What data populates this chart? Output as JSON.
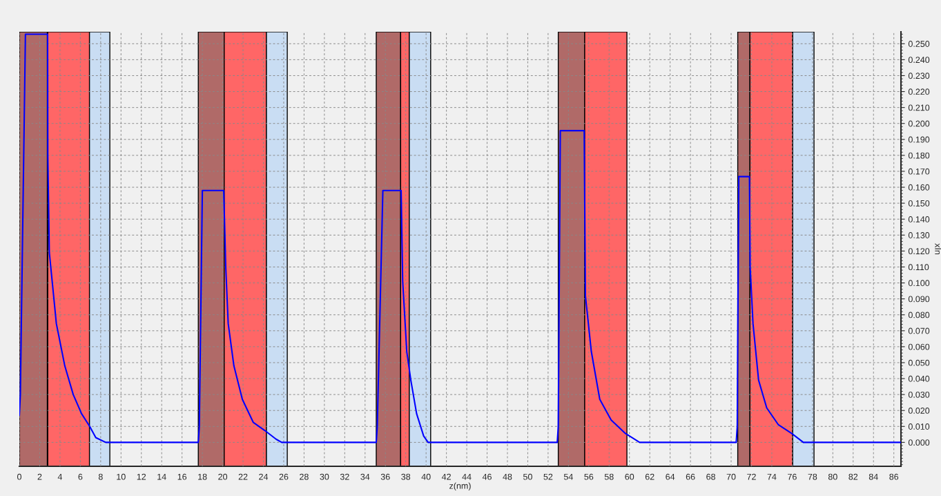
{
  "chart_data": {
    "type": "line",
    "xlabel": "z(nm)",
    "ylabel": "xIn",
    "series": [
      {
        "color": "#0000ff",
        "x": [
          0,
          0.1,
          0.6,
          2.78,
          2.8,
          2.95,
          3.37,
          3.64,
          4.47,
          5.3,
          6.12,
          6.92,
          7.52,
          8.5,
          17.6,
          17.7,
          18.0,
          20.1,
          20.3,
          20.54,
          21.1,
          21.93,
          23.0,
          24.15,
          25.25,
          25.8,
          35.1,
          35.2,
          35.75,
          37.55,
          37.7,
          38.1,
          38.5,
          39.07,
          39.76,
          40.2,
          52.9,
          53.0,
          53.2,
          55.55,
          55.67,
          56.25,
          57.08,
          58.2,
          59.6,
          61.0,
          70.5,
          70.6,
          70.75,
          71.8,
          71.87,
          72.15,
          72.7,
          73.5,
          74.65,
          75.95,
          77.1,
          86.7
        ],
        "values": [
          0.017,
          0.03,
          0.256,
          0.256,
          0.18,
          0.119,
          0.092,
          0.0745,
          0.048,
          0.03,
          0.018,
          0.01,
          0.003,
          0,
          0,
          0.01,
          0.158,
          0.158,
          0.11,
          0.0745,
          0.048,
          0.027,
          0.0126,
          0.0074,
          0.002,
          0,
          0,
          0.01,
          0.158,
          0.158,
          0.101,
          0.057,
          0.039,
          0.018,
          0.004,
          0,
          0,
          0.01,
          0.1955,
          0.1955,
          0.092,
          0.057,
          0.027,
          0.014,
          0.0056,
          0,
          0,
          0.01,
          0.1667,
          0.1667,
          0.11,
          0.0745,
          0.039,
          0.0216,
          0.011,
          0.0056,
          0,
          0
        ]
      }
    ],
    "xlim": [
      0,
      86.7
    ],
    "ylim": [
      -0.015,
      0.2575
    ],
    "xticks": [
      0,
      2,
      4,
      6,
      8,
      10,
      12,
      14,
      16,
      18,
      20,
      22,
      24,
      26,
      28,
      30,
      32,
      34,
      36,
      38,
      40,
      42,
      44,
      46,
      48,
      50,
      52,
      54,
      56,
      58,
      60,
      62,
      64,
      66,
      68,
      70,
      72,
      74,
      76,
      78,
      80,
      82,
      84,
      86
    ],
    "yticks": [
      {
        "value": 0,
        "label": "0.000"
      },
      {
        "value": 0.01,
        "label": "0.010"
      },
      {
        "value": 0.02,
        "label": "0.020"
      },
      {
        "value": 0.03,
        "label": "0.030"
      },
      {
        "value": 0.04,
        "label": "0.040"
      },
      {
        "value": 0.05,
        "label": "0.050"
      },
      {
        "value": 0.06,
        "label": "0.060"
      },
      {
        "value": 0.07,
        "label": "0.070"
      },
      {
        "value": 0.08,
        "label": "0.080"
      },
      {
        "value": 0.09,
        "label": "0.090"
      },
      {
        "value": 0.1,
        "label": "0.100"
      },
      {
        "value": 0.11,
        "label": "0.110"
      },
      {
        "value": 0.12,
        "label": "0.120"
      },
      {
        "value": 0.13,
        "label": "0.130"
      },
      {
        "value": 0.14,
        "label": "0.140"
      },
      {
        "value": 0.15,
        "label": "0.150"
      },
      {
        "value": 0.16,
        "label": "0.160"
      },
      {
        "value": 0.17,
        "label": "0.170"
      },
      {
        "value": 0.18,
        "label": "0.180"
      },
      {
        "value": 0.19,
        "label": "0.190"
      },
      {
        "value": 0.2,
        "label": "0.200"
      },
      {
        "value": 0.21,
        "label": "0.210"
      },
      {
        "value": 0.22,
        "label": "0.220"
      },
      {
        "value": 0.23,
        "label": "0.230"
      },
      {
        "value": 0.24,
        "label": "0.240"
      },
      {
        "value": 0.25,
        "label": "0.250"
      }
    ],
    "bands": [
      {
        "axis": "x",
        "from": 0,
        "to": 2.75,
        "color": "#b06a68"
      },
      {
        "axis": "x",
        "from": 2.8,
        "to": 6.9,
        "color": "#ff6666"
      },
      {
        "axis": "x",
        "from": 6.9,
        "to": 8.9,
        "color": "#c9ddf3"
      },
      {
        "axis": "x",
        "from": 17.6,
        "to": 20.15,
        "color": "#b06a68"
      },
      {
        "axis": "x",
        "from": 20.15,
        "to": 24.3,
        "color": "#ff6666"
      },
      {
        "axis": "x",
        "from": 24.3,
        "to": 26.35,
        "color": "#c9ddf3"
      },
      {
        "axis": "x",
        "from": 35.1,
        "to": 37.5,
        "color": "#b06a68"
      },
      {
        "axis": "x",
        "from": 37.5,
        "to": 38.35,
        "color": "#ff6666"
      },
      {
        "axis": "x",
        "from": 38.35,
        "to": 40.45,
        "color": "#c9ddf3"
      },
      {
        "axis": "x",
        "from": 53.0,
        "to": 55.6,
        "color": "#b06a68"
      },
      {
        "axis": "x",
        "from": 55.6,
        "to": 59.75,
        "color": "#ff6666"
      },
      {
        "axis": "x",
        "from": 70.65,
        "to": 71.85,
        "color": "#b06a68"
      },
      {
        "axis": "x",
        "from": 71.85,
        "to": 76.05,
        "color": "#ff6666"
      },
      {
        "axis": "x",
        "from": 76.05,
        "to": 78.15,
        "color": "#c9ddf3"
      }
    ],
    "grid": true,
    "marker": "none",
    "line_style": "solid"
  }
}
